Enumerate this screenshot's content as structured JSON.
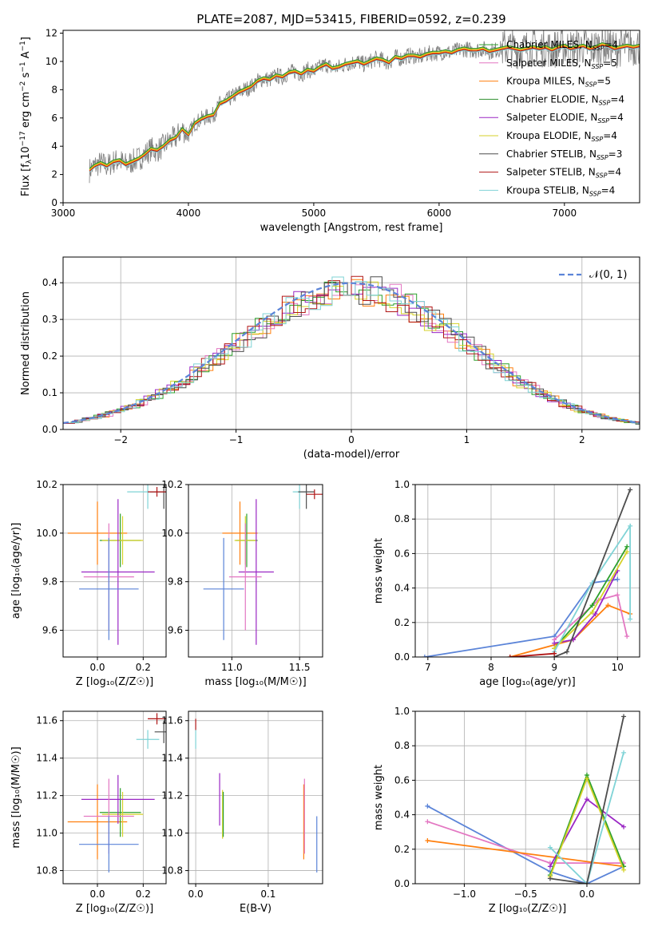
{
  "figure_title": "PLATE=2087, MJD=53415, FIBERID=0592, z=0.239",
  "colors": {
    "Chabrier MILES": "#2ca02c",
    "Salpeter MILES": "#e377c2",
    "Kroupa MILES": "#ff7f0e",
    "Chabrier ELODIE": "#2f8f2f",
    "Salpeter ELODIE": "#9a27c4",
    "Kroupa ELODIE": "#d6d22a",
    "Chabrier STELIB": "#4d4d4d",
    "Salpeter STELIB": "#b01515",
    "Kroupa STELIB": "#7fd3d6",
    "normal_curve": "#5b84d8",
    "extra_model": "#5b84d8"
  },
  "chart_data": [
    {
      "id": "spectrum",
      "type": "line",
      "title": "",
      "xlabel": "wavelength [Angstrom, rest frame]",
      "ylabel_main": "Flux [f",
      "ylabel_sub": "λ",
      "ylabel_mid": "10",
      "ylabel_sup1": "−17",
      "ylabel_rest": " erg cm",
      "ylabel_sup2": "−2",
      "ylabel_rest2": " s",
      "ylabel_sup3": "−1",
      "ylabel_rest3": " A",
      "ylabel_sup4": "−1",
      "ylabel_end": "]",
      "xlim": [
        3000,
        7600
      ],
      "ylim": [
        0,
        12.2
      ],
      "xticks": [
        3000,
        4000,
        5000,
        6000,
        7000
      ],
      "yticks": [
        0,
        2,
        4,
        6,
        8,
        10,
        12
      ],
      "x": [
        3210,
        3250,
        3300,
        3350,
        3400,
        3450,
        3500,
        3550,
        3600,
        3650,
        3700,
        3750,
        3800,
        3850,
        3900,
        3950,
        4000,
        4050,
        4100,
        4150,
        4200,
        4250,
        4300,
        4350,
        4400,
        4450,
        4500,
        4550,
        4600,
        4650,
        4700,
        4750,
        4800,
        4850,
        4900,
        4950,
        5000,
        5050,
        5100,
        5150,
        5200,
        5250,
        5300,
        5350,
        5400,
        5450,
        5500,
        5550,
        5600,
        5650,
        5700,
        5750,
        5800,
        5850,
        5900,
        5950,
        6000,
        6050,
        6100,
        6150,
        6200,
        6250,
        6300,
        6350,
        6400,
        6450,
        6500,
        6550,
        6600,
        6650,
        6700,
        6750,
        6800,
        6850,
        6900,
        6950,
        7000,
        7050,
        7100,
        7150,
        7200,
        7250,
        7300,
        7350,
        7400,
        7450,
        7500,
        7550,
        7600
      ],
      "y": [
        2.3,
        2.6,
        2.8,
        2.6,
        2.9,
        3.0,
        2.7,
        2.9,
        3.1,
        3.4,
        3.8,
        3.7,
        4.0,
        4.4,
        4.6,
        5.2,
        4.8,
        5.6,
        5.9,
        6.1,
        6.2,
        7.0,
        7.2,
        7.5,
        7.8,
        8.0,
        8.2,
        8.6,
        8.8,
        8.7,
        9.0,
        8.9,
        9.2,
        9.3,
        9.1,
        9.4,
        9.3,
        9.6,
        9.8,
        9.5,
        9.6,
        9.8,
        9.9,
        10.0,
        9.8,
        10.0,
        10.2,
        10.1,
        9.9,
        10.3,
        10.2,
        10.4,
        10.4,
        10.3,
        10.5,
        10.6,
        10.6,
        10.7,
        10.6,
        10.8,
        10.9,
        10.8,
        10.8,
        10.9,
        10.7,
        10.8,
        10.9,
        11.0,
        10.9,
        10.8,
        10.9,
        11.0,
        10.9,
        11.0,
        10.8,
        11.0,
        11.1,
        10.9,
        11.0,
        11.1,
        10.9,
        11.0,
        11.2,
        11.1,
        10.9,
        11.0,
        11.1,
        11.0,
        11.1
      ],
      "legend_position": "upper right",
      "legend": [
        {
          "imf": "Chabrier",
          "lib": "MILES",
          "n": "4"
        },
        {
          "imf": "Salpeter",
          "lib": "MILES",
          "n": "5"
        },
        {
          "imf": "Kroupa",
          "lib": "MILES",
          "n": "5"
        },
        {
          "imf": "Chabrier",
          "lib": "ELODIE",
          "n": "4"
        },
        {
          "imf": "Salpeter",
          "lib": "ELODIE",
          "n": "4"
        },
        {
          "imf": "Kroupa",
          "lib": "ELODIE",
          "n": "4"
        },
        {
          "imf": "Chabrier",
          "lib": "STELIB",
          "n": "3"
        },
        {
          "imf": "Salpeter",
          "lib": "STELIB",
          "n": "4"
        },
        {
          "imf": "Kroupa",
          "lib": "STELIB",
          "n": "4"
        }
      ],
      "legend_sub": "SSP"
    },
    {
      "id": "residuals",
      "type": "line",
      "xlabel": "(data-model)/error",
      "ylabel": "Normed distribution",
      "xlim": [
        -2.5,
        2.5
      ],
      "ylim": [
        0,
        0.47
      ],
      "xticks": [
        -2,
        -1,
        0,
        1,
        2
      ],
      "yticks": [
        0.0,
        0.1,
        0.2,
        0.3,
        0.4
      ],
      "grid": true,
      "normal_label": "𝒩(0, 1)",
      "legend_position": "upper right"
    },
    {
      "id": "age_vs_Z",
      "type": "scatter",
      "xlabel": "Z [log₁₀(Z/Z☉)]",
      "ylabel": "age  [log₁₀(age/yr)]",
      "xlim": [
        -0.15,
        0.3
      ],
      "ylim": [
        9.49,
        10.2
      ],
      "xticks": [
        0.0,
        0.2
      ],
      "yticks": [
        9.6,
        9.8,
        10.0,
        10.2
      ],
      "grid": true,
      "points": [
        {
          "model": "Kroupa MILES",
          "x": 0.0,
          "y": 10.0,
          "xerr": 0.13,
          "yerr": 0.13
        },
        {
          "model": "Chabrier MILES",
          "x": 0.1,
          "y": 9.97,
          "xerr": 0.09,
          "yerr": 0.11
        },
        {
          "model": "Kroupa ELODIE",
          "x": 0.11,
          "y": 9.97,
          "xerr": 0.09,
          "yerr": 0.1
        },
        {
          "model": "Salpeter ELODIE",
          "x": 0.09,
          "y": 9.84,
          "xerr": 0.16,
          "yerr": 0.3
        },
        {
          "model": "Salpeter MILES",
          "x": 0.05,
          "y": 9.82,
          "xerr": 0.11,
          "yerr": 0.22
        },
        {
          "model": "extra",
          "x": 0.05,
          "y": 9.77,
          "xerr": 0.13,
          "yerr": 0.21
        },
        {
          "model": "Kroupa STELIB",
          "x": 0.22,
          "y": 10.17,
          "xerr": 0.09,
          "yerr": 0.07
        },
        {
          "model": "Chabrier STELIB",
          "x": 0.29,
          "y": 10.17,
          "xerr": 0.06,
          "yerr": 0.07
        },
        {
          "model": "Salpeter STELIB",
          "x": 0.26,
          "y": 10.17,
          "xerr": 0.04,
          "yerr": 0.02
        }
      ]
    },
    {
      "id": "age_vs_mass",
      "type": "scatter",
      "xlabel": "mass [log₁₀(M/M☉)]",
      "xlim": [
        10.68,
        11.67
      ],
      "ylim": [
        9.49,
        10.2
      ],
      "xticks": [
        11.0,
        11.5
      ],
      "yticks": [
        9.6,
        9.8,
        10.0,
        10.2
      ],
      "grid": true,
      "points": [
        {
          "model": "Kroupa MILES",
          "x": 11.06,
          "y": 10.0,
          "xerr": 0.13,
          "yerr": 0.13
        },
        {
          "model": "Chabrier MILES",
          "x": 11.11,
          "y": 9.97,
          "xerr": 0.08,
          "yerr": 0.11
        },
        {
          "model": "Kroupa ELODIE",
          "x": 11.1,
          "y": 9.97,
          "xerr": 0.08,
          "yerr": 0.1
        },
        {
          "model": "Salpeter ELODIE",
          "x": 11.18,
          "y": 9.84,
          "xerr": 0.13,
          "yerr": 0.3
        },
        {
          "model": "Salpeter MILES",
          "x": 11.1,
          "y": 9.82,
          "xerr": 0.12,
          "yerr": 0.22
        },
        {
          "model": "extra",
          "x": 10.94,
          "y": 9.77,
          "xerr": 0.15,
          "yerr": 0.21
        },
        {
          "model": "Kroupa STELIB",
          "x": 11.5,
          "y": 10.17,
          "xerr": 0.05,
          "yerr": 0.07
        },
        {
          "model": "Chabrier STELIB",
          "x": 11.55,
          "y": 10.17,
          "xerr": 0.06,
          "yerr": 0.07
        },
        {
          "model": "Salpeter STELIB",
          "x": 11.61,
          "y": 10.16,
          "xerr": 0.06,
          "yerr": 0.02
        }
      ]
    },
    {
      "id": "massweight_vs_age",
      "type": "line",
      "xlabel": "age  [log₁₀(age/yr)]",
      "ylabel": "mass weight",
      "xlim": [
        6.8,
        10.35
      ],
      "ylim": [
        0,
        1.0
      ],
      "xticks": [
        7,
        8,
        9,
        10
      ],
      "yticks": [
        0.0,
        0.2,
        0.4,
        0.6,
        0.8,
        1.0
      ],
      "grid": true,
      "series": [
        {
          "model": "extra",
          "x": [
            6.95,
            9.0,
            9.6,
            10.0
          ],
          "y": [
            0.0,
            0.12,
            0.43,
            0.45
          ]
        },
        {
          "model": "Kroupa MILES",
          "x": [
            8.3,
            9.3,
            9.85,
            10.2
          ],
          "y": [
            0.0,
            0.1,
            0.3,
            0.25
          ]
        },
        {
          "model": "Salpeter MILES",
          "x": [
            9.0,
            9.7,
            10.0,
            10.15
          ],
          "y": [
            0.1,
            0.33,
            0.36,
            0.12
          ]
        },
        {
          "model": "Salpeter ELODIE",
          "x": [
            9.0,
            9.3,
            9.65,
            10.0
          ],
          "y": [
            0.08,
            0.1,
            0.25,
            0.5
          ]
        },
        {
          "model": "Chabrier MILES",
          "x": [
            9.0,
            9.6,
            10.15
          ],
          "y": [
            0.05,
            0.3,
            0.64
          ]
        },
        {
          "model": "Kroupa ELODIE",
          "x": [
            9.0,
            9.6,
            10.15
          ],
          "y": [
            0.05,
            0.26,
            0.61
          ]
        },
        {
          "model": "Kroupa STELIB",
          "x": [
            9.0,
            9.6,
            10.2,
            10.2
          ],
          "y": [
            0.03,
            0.43,
            0.76,
            0.22
          ]
        },
        {
          "model": "Chabrier STELIB",
          "x": [
            9.0,
            9.2,
            10.2
          ],
          "y": [
            0.0,
            0.03,
            0.97
          ]
        },
        {
          "model": "Salpeter STELIB",
          "x": [
            8.3,
            9.0
          ],
          "y": [
            0.0,
            0.02
          ]
        }
      ]
    },
    {
      "id": "mass_vs_Z",
      "type": "scatter",
      "xlabel": "Z [log₁₀(Z/Z☉)]",
      "ylabel": "mass [log₁₀(M/M☉)]",
      "xlim": [
        -0.15,
        0.3
      ],
      "ylim": [
        10.73,
        11.65
      ],
      "xticks": [
        0.0,
        0.2
      ],
      "yticks": [
        10.8,
        11.0,
        11.2,
        11.4,
        11.6
      ],
      "grid": true,
      "points": [
        {
          "model": "Kroupa MILES",
          "x": 0.0,
          "y": 11.06,
          "xerr": 0.13,
          "yerr": 0.2
        },
        {
          "model": "Chabrier MILES",
          "x": 0.1,
          "y": 11.11,
          "xerr": 0.09,
          "yerr": 0.13
        },
        {
          "model": "Kroupa ELODIE",
          "x": 0.11,
          "y": 11.1,
          "xerr": 0.09,
          "yerr": 0.12
        },
        {
          "model": "Salpeter ELODIE",
          "x": 0.09,
          "y": 11.18,
          "xerr": 0.16,
          "yerr": 0.13
        },
        {
          "model": "Salpeter MILES",
          "x": 0.05,
          "y": 11.09,
          "xerr": 0.11,
          "yerr": 0.2
        },
        {
          "model": "extra",
          "x": 0.05,
          "y": 10.94,
          "xerr": 0.13,
          "yerr": 0.15
        },
        {
          "model": "Kroupa STELIB",
          "x": 0.22,
          "y": 11.5,
          "xerr": 0.05,
          "yerr": 0.05
        },
        {
          "model": "Chabrier STELIB",
          "x": 0.29,
          "y": 11.54,
          "xerr": 0.04,
          "yerr": 0.06
        },
        {
          "model": "Salpeter STELIB",
          "x": 0.26,
          "y": 11.61,
          "xerr": 0.04,
          "yerr": 0.03
        }
      ]
    },
    {
      "id": "mass_vs_ebv",
      "type": "scatter",
      "xlabel": "E(B-V)",
      "xlim": [
        -0.01,
        0.175
      ],
      "ylim": [
        10.73,
        11.65
      ],
      "xticks": [
        0.0,
        0.1
      ],
      "yticks": [
        10.8,
        11.0,
        11.2,
        11.4,
        11.6
      ],
      "grid": true,
      "points": [
        {
          "model": "Salpeter STELIB",
          "x": 0.0,
          "y": 11.58,
          "yerr": 0.03
        },
        {
          "model": "Kroupa STELIB",
          "x": 0.0,
          "y": 11.5,
          "yerr": 0.05
        },
        {
          "model": "Salpeter ELODIE",
          "x": 0.033,
          "y": 11.18,
          "yerr": 0.14
        },
        {
          "model": "Kroupa ELODIE",
          "x": 0.037,
          "y": 11.1,
          "yerr": 0.13
        },
        {
          "model": "Chabrier MILES",
          "x": 0.038,
          "y": 11.1,
          "yerr": 0.12
        },
        {
          "model": "Kroupa MILES",
          "x": 0.149,
          "y": 11.06,
          "yerr": 0.2
        },
        {
          "model": "Salpeter MILES",
          "x": 0.15,
          "y": 11.09,
          "yerr": 0.2
        },
        {
          "model": "extra",
          "x": 0.167,
          "y": 10.94,
          "yerr": 0.15
        }
      ]
    },
    {
      "id": "massweight_vs_Z",
      "type": "line",
      "xlabel": "Z [log₁₀(Z/Z☉)]",
      "ylabel": "mass weight",
      "xlim": [
        -1.4,
        0.43
      ],
      "ylim": [
        0,
        1.0
      ],
      "xticks": [
        -1.0,
        -0.5,
        0.0
      ],
      "yticks": [
        0.0,
        0.2,
        0.4,
        0.6,
        0.8,
        1.0
      ],
      "grid": true,
      "series": [
        {
          "model": "extra",
          "x": [
            -1.3,
            -0.3,
            0.0,
            0.3
          ],
          "y": [
            0.45,
            0.07,
            0.0,
            0.1
          ]
        },
        {
          "model": "Salpeter MILES",
          "x": [
            -1.3,
            -0.3,
            0.3
          ],
          "y": [
            0.36,
            0.12,
            0.12
          ]
        },
        {
          "model": "Kroupa MILES",
          "x": [
            -1.3,
            0.3
          ],
          "y": [
            0.25,
            0.1
          ]
        },
        {
          "model": "Salpeter ELODIE",
          "x": [
            -0.3,
            0.0,
            0.3
          ],
          "y": [
            0.1,
            0.49,
            0.33
          ]
        },
        {
          "model": "Chabrier MILES",
          "x": [
            -0.3,
            0.0,
            0.3
          ],
          "y": [
            0.05,
            0.63,
            0.1
          ]
        },
        {
          "model": "Kroupa ELODIE",
          "x": [
            -0.3,
            0.0,
            0.3
          ],
          "y": [
            0.04,
            0.61,
            0.08
          ]
        },
        {
          "model": "Kroupa STELIB",
          "x": [
            -0.3,
            0.0,
            0.3
          ],
          "y": [
            0.21,
            0.0,
            0.76
          ]
        },
        {
          "model": "Chabrier STELIB",
          "x": [
            -0.3,
            0.0,
            0.3
          ],
          "y": [
            0.03,
            0.0,
            0.97
          ]
        }
      ]
    }
  ]
}
